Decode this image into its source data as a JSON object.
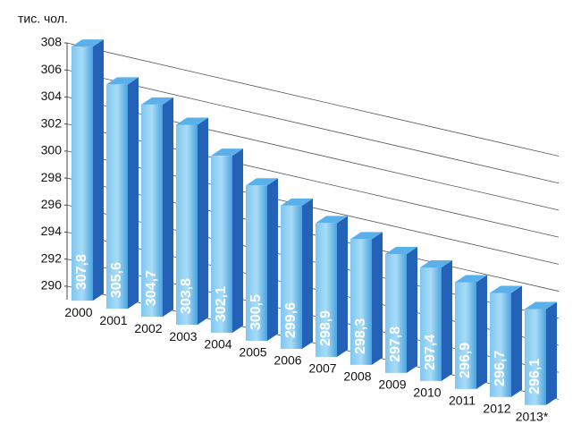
{
  "chart_data": {
    "type": "bar3d",
    "y_label": "тис. чол.",
    "categories": [
      "2000",
      "2001",
      "2002",
      "2003",
      "2004",
      "2005",
      "2006",
      "2007",
      "2008",
      "2009",
      "2010",
      "2011",
      "2012",
      "2013*"
    ],
    "values": [
      307.8,
      305.6,
      304.7,
      303.8,
      302.1,
      300.5,
      299.6,
      298.9,
      298.3,
      297.8,
      297.4,
      296.9,
      296.7,
      296.1
    ],
    "value_labels": [
      "307,8",
      "305,6",
      "304,7",
      "303,8",
      "302,1",
      "300,5",
      "299,6",
      "298,9",
      "298,3",
      "297,8",
      "297,4",
      "296,9",
      "296,7",
      "296,1"
    ],
    "color": "#3a8fd6",
    "ylim": [
      289,
      308
    ],
    "yticks": [
      290,
      292,
      294,
      296,
      298,
      300,
      302,
      304,
      306,
      308
    ],
    "grid": true
  }
}
